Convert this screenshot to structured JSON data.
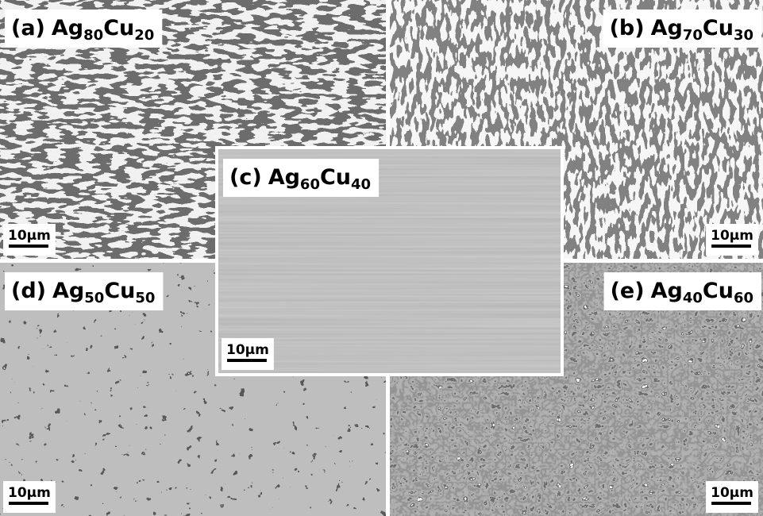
{
  "panels": [
    {
      "label": "(a)",
      "element1": "Ag",
      "sub1": "80",
      "element2": "Cu",
      "sub2": "20",
      "scale_bar": "10μm"
    },
    {
      "label": "(b)",
      "element1": "Ag",
      "sub1": "70",
      "element2": "Cu",
      "sub2": "30",
      "scale_bar": "10μm"
    },
    {
      "label": "(c)",
      "element1": "Ag",
      "sub1": "60",
      "element2": "Cu",
      "sub2": "40",
      "scale_bar": "10μm"
    },
    {
      "label": "(d)",
      "element1": "Ag",
      "sub1": "50",
      "element2": "Cu",
      "sub2": "50",
      "scale_bar": "10μm"
    },
    {
      "label": "(e)",
      "element1": "Ag",
      "sub1": "40",
      "element2": "Cu",
      "sub2": "60",
      "scale_bar": "10μm"
    }
  ]
}
